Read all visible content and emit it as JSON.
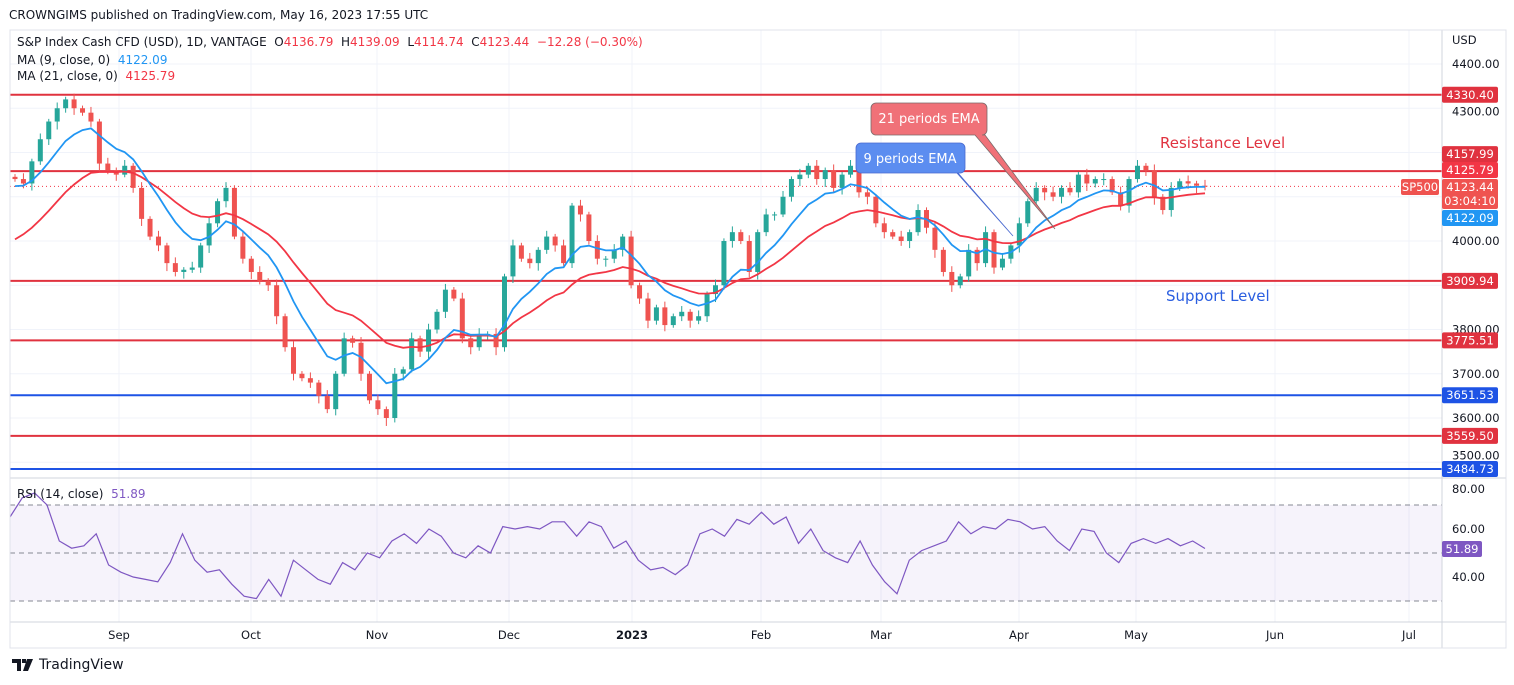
{
  "header": {
    "published": "CROWNGIMS published on TradingView.com, May 16, 2023 17:55 UTC"
  },
  "legend": {
    "symbol": "S&P Index Cash CFD (USD), 1D, VANTAGE",
    "o_label": "O",
    "open": "4136.79",
    "h_label": "H",
    "high": "4139.09",
    "l_label": "L",
    "low": "4114.74",
    "c_label": "C",
    "close": "4123.44",
    "change": "−12.28 (−0.30%)",
    "ma9_label": "MA (9, close, 0)",
    "ma9_value": "4122.09",
    "ma21_label": "MA (21, close, 0)",
    "ma21_value": "4125.79",
    "rsi_label": "RSI (14, close)",
    "rsi_value": "51.89"
  },
  "colors": {
    "up": "#26a69a",
    "down": "#ef5350",
    "ma9": "#2196f3",
    "ma21": "#f23645",
    "rsi": "#7e57c2",
    "support_blue": "#1e53e5",
    "level_red": "#e0323f"
  },
  "chart_data": {
    "type": "candlestick",
    "currency": "USD",
    "ylim": [
      3460,
      4440
    ],
    "price_ticks": [
      "4400.00",
      "4300.00",
      "4000.00",
      "3800.00",
      "3700.00",
      "3600.00",
      "3500.00"
    ],
    "price_tick_values": [
      4400,
      4300,
      4000,
      3800,
      3700,
      3600,
      3500
    ],
    "x_ticks": [
      "Sep",
      "Oct",
      "Nov",
      "Dec",
      "2023",
      "Feb",
      "Mar",
      "Apr",
      "May",
      "Jun",
      "Jul"
    ],
    "closes_approx": [
      4140,
      4130,
      4180,
      4230,
      4270,
      4300,
      4320,
      4300,
      4290,
      4270,
      4175,
      4160,
      4150,
      4170,
      4120,
      4050,
      4010,
      3990,
      3950,
      3930,
      3935,
      3940,
      3990,
      4040,
      4090,
      4120,
      4010,
      3960,
      3930,
      3910,
      3900,
      3830,
      3760,
      3700,
      3690,
      3680,
      3650,
      3620,
      3700,
      3780,
      3770,
      3700,
      3640,
      3620,
      3600,
      3700,
      3710,
      3780,
      3750,
      3800,
      3840,
      3890,
      3870,
      3780,
      3760,
      3790,
      3790,
      3760,
      3920,
      3990,
      3960,
      3950,
      3980,
      4010,
      3990,
      3950,
      4080,
      4060,
      4000,
      3960,
      3960,
      3980,
      4010,
      3900,
      3870,
      3820,
      3850,
      3810,
      3830,
      3840,
      3820,
      3830,
      3880,
      3900,
      4000,
      4020,
      4000,
      3930,
      4020,
      4060,
      4060,
      4100,
      4140,
      4150,
      4170,
      4140,
      4160,
      4120,
      4150,
      4170,
      4110,
      4100,
      4040,
      4020,
      4010,
      4000,
      4020,
      4070,
      4030,
      3980,
      3930,
      3900,
      3920,
      3980,
      3950,
      4020,
      3940,
      3960,
      3990,
      4040,
      4090,
      4120,
      4110,
      4100,
      4120,
      4110,
      4150,
      4130,
      4140,
      4140,
      4110,
      4080,
      4140,
      4170,
      4160,
      4100,
      4070,
      4120,
      4135,
      4130,
      4125,
      4123.44
    ],
    "levels": [
      {
        "value": "4330.40",
        "color": "red"
      },
      {
        "value": "4157.99",
        "color": "red"
      },
      {
        "value": "3909.94",
        "color": "red"
      },
      {
        "value": "3775.51",
        "color": "red"
      },
      {
        "value": "3651.53",
        "color": "blue"
      },
      {
        "value": "3559.50",
        "color": "red"
      },
      {
        "value": "3484.73",
        "color": "blue"
      }
    ],
    "price_tags": {
      "ma21": "4125.79",
      "last": "4123.44",
      "countdown": "03:04:10",
      "ma9": "4122.09",
      "symbol": "SP500"
    },
    "annotations": {
      "ema21": "21 periods EMA",
      "ema9": "9 periods EMA",
      "resistance": "Resistance Level",
      "support": "Support Level"
    },
    "rsi": {
      "ticks": [
        "80.00",
        "60.00",
        "40.00"
      ],
      "tick_values": [
        80,
        60,
        40
      ],
      "bands": [
        70,
        50,
        30
      ],
      "value_tag": "51.89",
      "values_approx": [
        65,
        73,
        75,
        70,
        55,
        52,
        53,
        58,
        45,
        42,
        40,
        39,
        38,
        46,
        58,
        47,
        42,
        43,
        37,
        32,
        31,
        39,
        32,
        47,
        43,
        39,
        37,
        46,
        43,
        50,
        48,
        55,
        58,
        54,
        60,
        57,
        50,
        48,
        53,
        50,
        61,
        60,
        61,
        60,
        63,
        63,
        57,
        63,
        61,
        52,
        55,
        47,
        43,
        44,
        41,
        45,
        58,
        60,
        57,
        64,
        62,
        67,
        62,
        65,
        54,
        60,
        51,
        48,
        46,
        55,
        45,
        38,
        33,
        47,
        51,
        53,
        55,
        63,
        58,
        61,
        60,
        64,
        63,
        60,
        61,
        55,
        51,
        60,
        59,
        50,
        46,
        54,
        56,
        54,
        56,
        53,
        55,
        51.89
      ]
    }
  },
  "footer": {
    "brand": "TradingView"
  }
}
